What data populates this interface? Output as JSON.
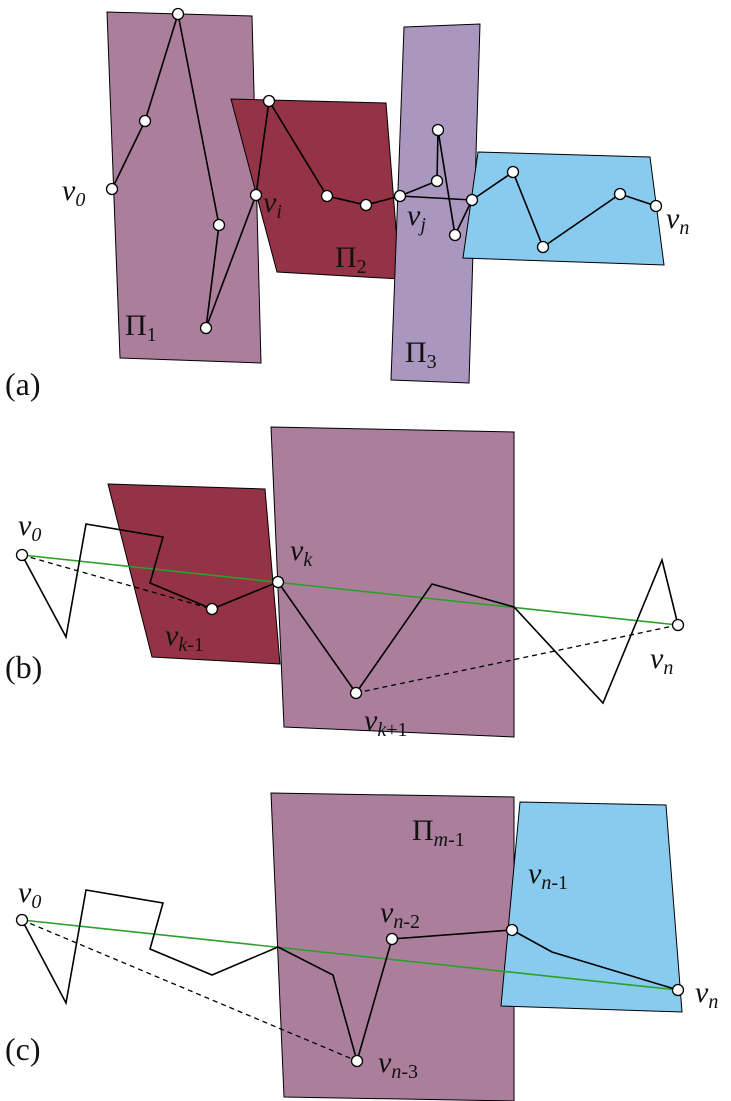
{
  "panels": {
    "a": "(a)",
    "b": "(b)",
    "c": "(c)"
  },
  "colors": {
    "mauve": "#ab7f9b",
    "maroon": "#933345",
    "lilac": "#a997bf",
    "blue": "#88cbee",
    "green": "#2aa02a"
  },
  "a": {
    "v0": {
      "base": "v",
      "sub": "0"
    },
    "vi": {
      "base": "v",
      "sub": "i"
    },
    "vj": {
      "base": "v",
      "sub": "j"
    },
    "vn": {
      "base": "v",
      "sub": "n"
    },
    "pi1": {
      "base": "Π",
      "sub": "1"
    },
    "pi2": {
      "base": "Π",
      "sub": "2"
    },
    "pi3": {
      "base": "Π",
      "sub": "3"
    }
  },
  "b": {
    "v0": {
      "base": "v",
      "sub": "0"
    },
    "vk": {
      "base": "v",
      "sub": "k"
    },
    "vkm1": {
      "base": "v",
      "sub": "k",
      "sub2": "-1"
    },
    "vkp1": {
      "base": "v",
      "sub": "k",
      "sub2": "+1"
    },
    "vn": {
      "base": "v",
      "sub": "n"
    }
  },
  "c": {
    "v0": {
      "base": "v",
      "sub": "0"
    },
    "pim1": {
      "base": "Π",
      "sub": "m",
      "sub2": "-1"
    },
    "vnm2": {
      "base": "v",
      "sub": "n",
      "sub2": "-2"
    },
    "vnm1": {
      "base": "v",
      "sub": "n",
      "sub2": "-1"
    },
    "vnm3": {
      "base": "v",
      "sub": "n",
      "sub2": "-3"
    },
    "vn": {
      "base": "v",
      "sub": "n"
    }
  }
}
